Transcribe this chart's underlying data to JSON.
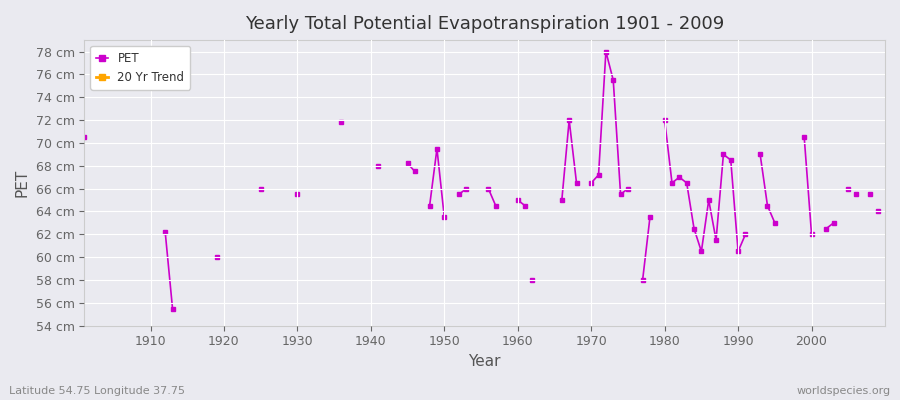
{
  "title": "Yearly Total Potential Evapotranspiration 1901 - 2009",
  "xlabel": "Year",
  "ylabel": "PET",
  "subtitle": "Latitude 54.75 Longitude 37.75",
  "watermark": "worldspecies.org",
  "pet_color": "#CC00CC",
  "trend_color": "#FFA500",
  "background_color": "#EAEAF0",
  "grid_color": "#FFFFFF",
  "ytick_labels": [
    "54 cm",
    "56 cm",
    "58 cm",
    "60 cm",
    "62 cm",
    "64 cm",
    "66 cm",
    "68 cm",
    "70 cm",
    "72 cm",
    "74 cm",
    "76 cm",
    "78 cm"
  ],
  "ytick_values": [
    54,
    56,
    58,
    60,
    62,
    64,
    66,
    68,
    70,
    72,
    74,
    76,
    78
  ],
  "xticks": [
    1910,
    1920,
    1930,
    1940,
    1950,
    1960,
    1970,
    1980,
    1990,
    2000
  ],
  "xlim": [
    1901,
    2010
  ],
  "ylim": [
    54,
    79
  ],
  "segments": [
    {
      "years": [
        1901
      ],
      "values": [
        70.5
      ]
    },
    {
      "years": [
        1912,
        1913
      ],
      "values": [
        62.2,
        55.5
      ]
    },
    {
      "years": [
        1919
      ],
      "values": [
        60.0
      ]
    },
    {
      "years": [
        1925
      ],
      "values": [
        66.0
      ]
    },
    {
      "years": [
        1930
      ],
      "values": [
        65.5
      ]
    },
    {
      "years": [
        1936
      ],
      "values": [
        71.8
      ]
    },
    {
      "years": [
        1941
      ],
      "values": [
        68.0
      ]
    },
    {
      "years": [
        1945,
        1946
      ],
      "values": [
        68.2,
        67.5
      ]
    },
    {
      "years": [
        1948,
        1949,
        1950
      ],
      "values": [
        64.5,
        69.5,
        63.5
      ]
    },
    {
      "years": [
        1952,
        1953
      ],
      "values": [
        65.5,
        66.0
      ]
    },
    {
      "years": [
        1956,
        1957
      ],
      "values": [
        66.0,
        64.5
      ]
    },
    {
      "years": [
        1960,
        1961
      ],
      "values": [
        65.0,
        64.5
      ]
    },
    {
      "years": [
        1962
      ],
      "values": [
        58.0
      ]
    },
    {
      "years": [
        1966,
        1967,
        1968
      ],
      "values": [
        65.0,
        72.0,
        66.5
      ]
    },
    {
      "years": [
        1970,
        1971,
        1972,
        1973,
        1974,
        1975
      ],
      "values": [
        66.5,
        67.2,
        78.0,
        75.5,
        65.5,
        66.0
      ]
    },
    {
      "years": [
        1977,
        1978
      ],
      "values": [
        58.0,
        63.5
      ]
    },
    {
      "years": [
        1980,
        1981,
        1982,
        1983,
        1984,
        1985,
        1986,
        1987,
        1988,
        1989,
        1990,
        1991
      ],
      "values": [
        72.0,
        66.5,
        67.0,
        66.5,
        62.5,
        60.5,
        65.0,
        61.5,
        69.0,
        68.5,
        60.5,
        62.0
      ]
    },
    {
      "years": [
        1993,
        1994,
        1995
      ],
      "values": [
        69.0,
        64.5,
        63.0
      ]
    },
    {
      "years": [
        1999,
        2000
      ],
      "values": [
        70.5,
        62.0
      ]
    },
    {
      "years": [
        2002,
        2003
      ],
      "values": [
        62.5,
        63.0
      ]
    },
    {
      "years": [
        2005
      ],
      "values": [
        66.0
      ]
    },
    {
      "years": [
        2006
      ],
      "values": [
        65.5
      ]
    },
    {
      "years": [
        2008
      ],
      "values": [
        65.5
      ]
    },
    {
      "years": [
        2009
      ],
      "values": [
        64.0
      ]
    }
  ]
}
